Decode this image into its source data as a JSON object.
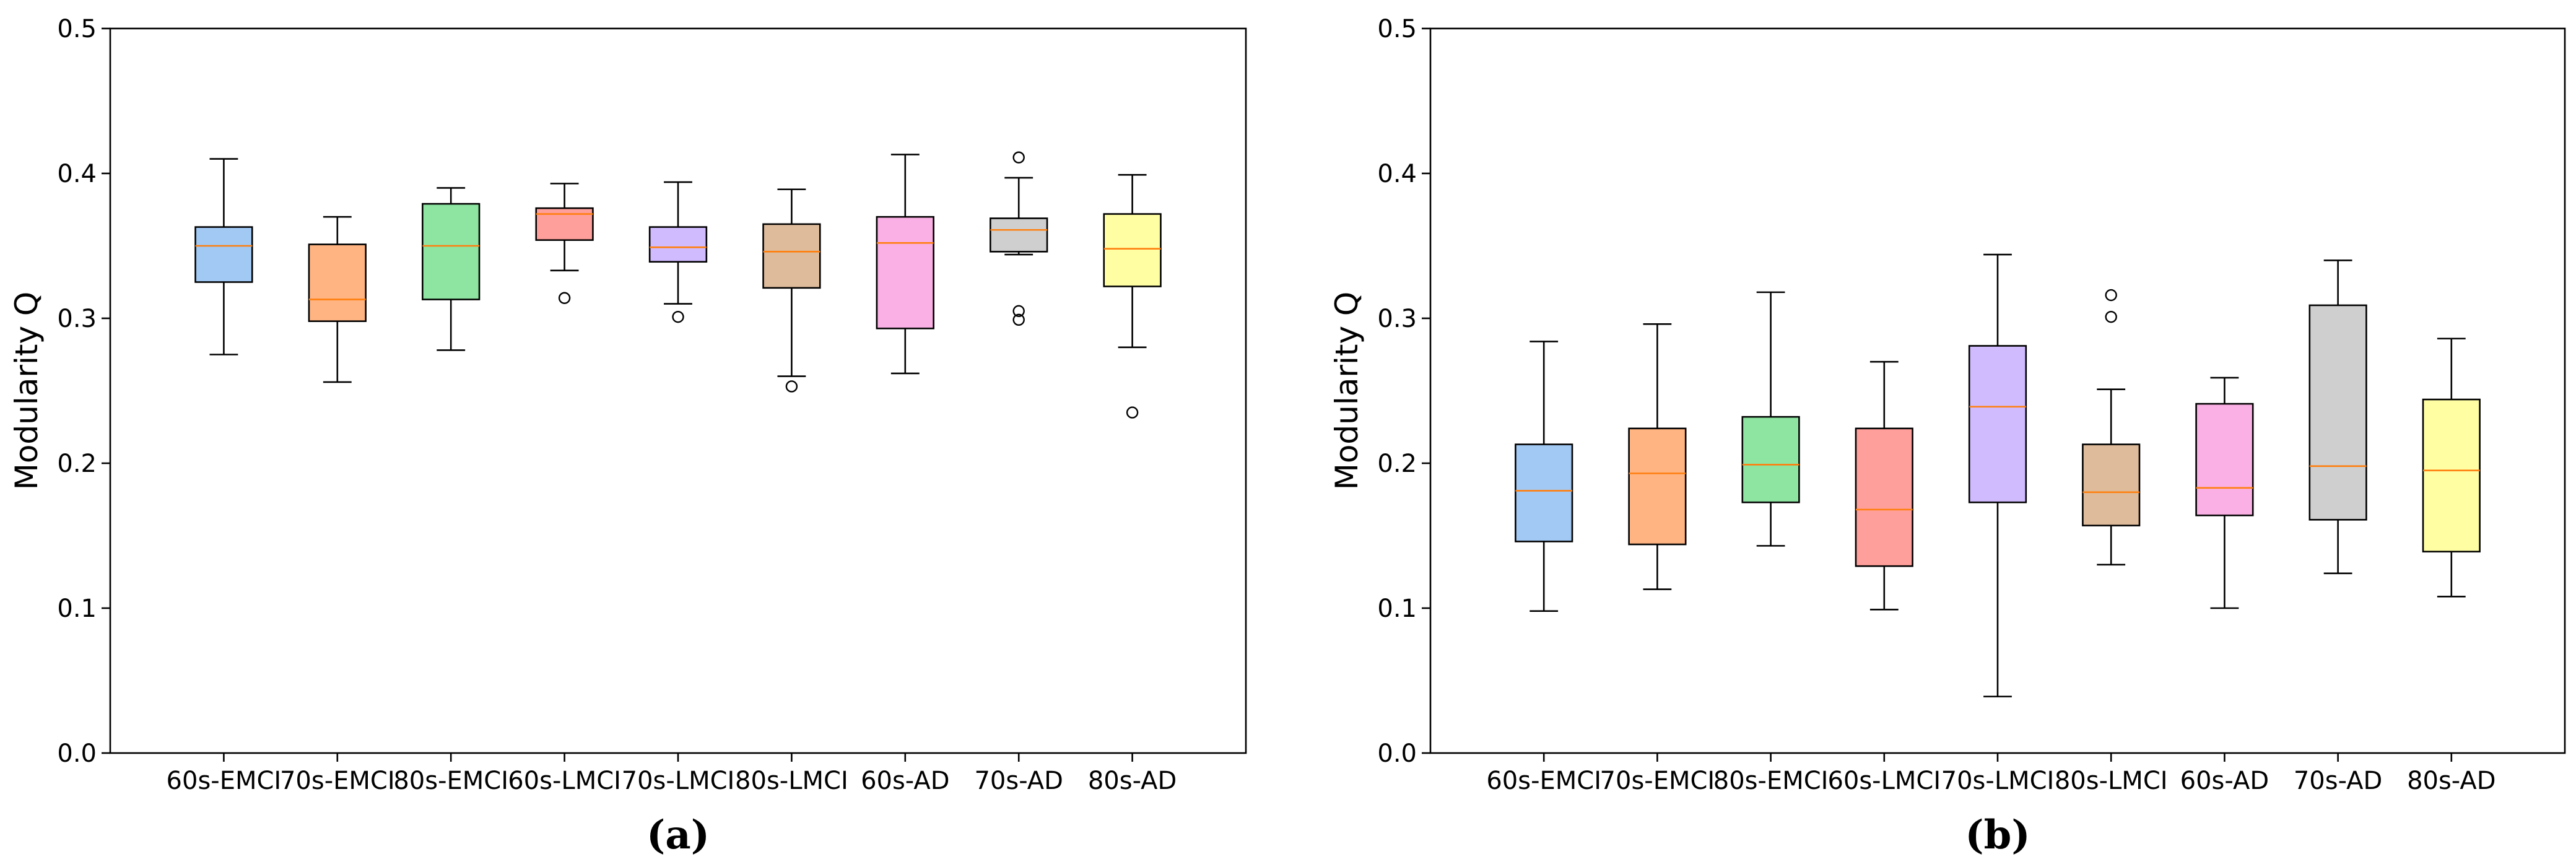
{
  "chart_data": [
    {
      "type": "box",
      "ylabel": "Modularity Q",
      "caption": "(a)",
      "ylim": [
        0,
        0.5
      ],
      "yticks": [
        "0.0",
        "0.1",
        "0.2",
        "0.3",
        "0.4",
        "0.5"
      ],
      "grid": false,
      "categories": [
        "60s-EMCI",
        "70s-EMCI",
        "80s-EMCI",
        "60s-LMCI",
        "70s-LMCI",
        "80s-LMCI",
        "60s-AD",
        "70s-AD",
        "80s-AD"
      ],
      "boxes": [
        {
          "whislo": 0.275,
          "q1": 0.325,
          "med": 0.35,
          "q3": 0.363,
          "whishi": 0.41,
          "fliers": []
        },
        {
          "whislo": 0.256,
          "q1": 0.298,
          "med": 0.313,
          "q3": 0.351,
          "whishi": 0.37,
          "fliers": []
        },
        {
          "whislo": 0.278,
          "q1": 0.313,
          "med": 0.35,
          "q3": 0.379,
          "whishi": 0.39,
          "fliers": []
        },
        {
          "whislo": 0.333,
          "q1": 0.354,
          "med": 0.372,
          "q3": 0.376,
          "whishi": 0.393,
          "fliers": [
            0.314
          ]
        },
        {
          "whislo": 0.31,
          "q1": 0.339,
          "med": 0.349,
          "q3": 0.363,
          "whishi": 0.394,
          "fliers": [
            0.301
          ]
        },
        {
          "whislo": 0.26,
          "q1": 0.321,
          "med": 0.346,
          "q3": 0.365,
          "whishi": 0.389,
          "fliers": [
            0.253
          ]
        },
        {
          "whislo": 0.262,
          "q1": 0.293,
          "med": 0.352,
          "q3": 0.37,
          "whishi": 0.413,
          "fliers": []
        },
        {
          "whislo": 0.344,
          "q1": 0.346,
          "med": 0.361,
          "q3": 0.369,
          "whishi": 0.397,
          "fliers": [
            0.305,
            0.299,
            0.411
          ]
        },
        {
          "whislo": 0.28,
          "q1": 0.322,
          "med": 0.348,
          "q3": 0.372,
          "whishi": 0.399,
          "fliers": [
            0.235
          ]
        }
      ]
    },
    {
      "type": "box",
      "ylabel": "Modularity Q",
      "caption": "(b)",
      "ylim": [
        0,
        0.5
      ],
      "yticks": [
        "0.0",
        "0.1",
        "0.2",
        "0.3",
        "0.4",
        "0.5"
      ],
      "grid": false,
      "categories": [
        "60s-EMCI",
        "70s-EMCI",
        "80s-EMCI",
        "60s-LMCI",
        "70s-LMCI",
        "80s-LMCI",
        "60s-AD",
        "70s-AD",
        "80s-AD"
      ],
      "boxes": [
        {
          "whislo": 0.098,
          "q1": 0.146,
          "med": 0.181,
          "q3": 0.213,
          "whishi": 0.284,
          "fliers": []
        },
        {
          "whislo": 0.113,
          "q1": 0.144,
          "med": 0.193,
          "q3": 0.224,
          "whishi": 0.296,
          "fliers": []
        },
        {
          "whislo": 0.143,
          "q1": 0.173,
          "med": 0.199,
          "q3": 0.232,
          "whishi": 0.318,
          "fliers": []
        },
        {
          "whislo": 0.099,
          "q1": 0.129,
          "med": 0.168,
          "q3": 0.224,
          "whishi": 0.27,
          "fliers": []
        },
        {
          "whislo": 0.039,
          "q1": 0.173,
          "med": 0.239,
          "q3": 0.281,
          "whishi": 0.344,
          "fliers": []
        },
        {
          "whislo": 0.13,
          "q1": 0.157,
          "med": 0.18,
          "q3": 0.213,
          "whishi": 0.251,
          "fliers": [
            0.301,
            0.316
          ]
        },
        {
          "whislo": 0.1,
          "q1": 0.164,
          "med": 0.183,
          "q3": 0.241,
          "whishi": 0.259,
          "fliers": []
        },
        {
          "whislo": 0.124,
          "q1": 0.161,
          "med": 0.198,
          "q3": 0.309,
          "whishi": 0.34,
          "fliers": []
        },
        {
          "whislo": 0.108,
          "q1": 0.139,
          "med": 0.195,
          "q3": 0.244,
          "whishi": 0.286,
          "fliers": []
        }
      ]
    }
  ],
  "colors": {
    "box_fills": [
      "#a1c9f4",
      "#ffb482",
      "#8de5a1",
      "#ff9f9b",
      "#d0bbff",
      "#debb9b",
      "#fab0e4",
      "#cfcfcf",
      "#fffea3"
    ],
    "median": "#ff7f0e",
    "line": "#000000"
  }
}
